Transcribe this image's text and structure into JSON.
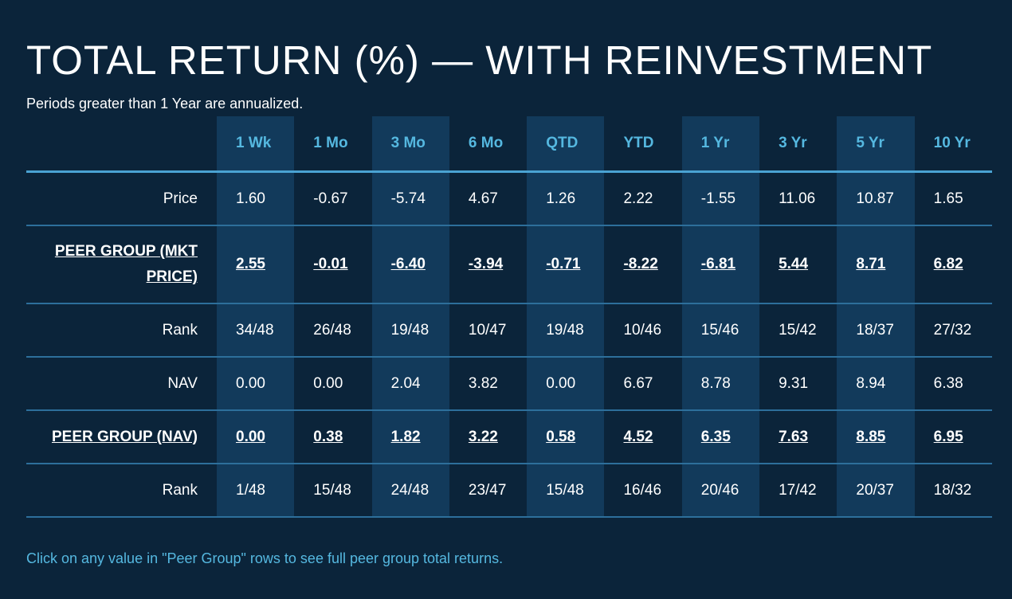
{
  "title": "TOTAL RETURN (%) — WITH REINVESTMENT",
  "subtitle": "Periods greater than 1 Year are annualized.",
  "columns": [
    "1 Wk",
    "1 Mo",
    "3 Mo",
    "6 Mo",
    "QTD",
    "YTD",
    "1 Yr",
    "3 Yr",
    "5 Yr",
    "10 Yr"
  ],
  "rows": [
    {
      "label": "Price",
      "link": false,
      "values": [
        "1.60",
        "-0.67",
        "-5.74",
        "4.67",
        "1.26",
        "2.22",
        "-1.55",
        "11.06",
        "10.87",
        "1.65"
      ]
    },
    {
      "label": "PEER GROUP (MKT PRICE)",
      "link": true,
      "values": [
        "2.55",
        "-0.01",
        "-6.40",
        "-3.94",
        "-0.71",
        "-8.22",
        "-6.81",
        "5.44",
        "8.71",
        "6.82"
      ]
    },
    {
      "label": "Rank",
      "link": false,
      "values": [
        "34/48",
        "26/48",
        "19/48",
        "10/47",
        "19/48",
        "10/46",
        "15/46",
        "15/42",
        "18/37",
        "27/32"
      ]
    },
    {
      "label": "NAV",
      "link": false,
      "values": [
        "0.00",
        "0.00",
        "2.04",
        "3.82",
        "0.00",
        "6.67",
        "8.78",
        "9.31",
        "8.94",
        "6.38"
      ]
    },
    {
      "label": "PEER GROUP (NAV)",
      "link": true,
      "values": [
        "0.00",
        "0.38",
        "1.82",
        "3.22",
        "0.58",
        "4.52",
        "6.35",
        "7.63",
        "8.85",
        "6.95"
      ]
    },
    {
      "label": "Rank",
      "link": false,
      "values": [
        "1/48",
        "15/48",
        "24/48",
        "23/47",
        "15/48",
        "16/46",
        "20/46",
        "17/42",
        "20/37",
        "18/32"
      ]
    }
  ],
  "footnote": "Click on any value in \"Peer Group\" rows to see full peer group total returns.",
  "colors": {
    "background": "#0b243a",
    "column_shade": "#123a5b",
    "accent": "#55b8e0",
    "row_divider": "#2d6f9b"
  }
}
